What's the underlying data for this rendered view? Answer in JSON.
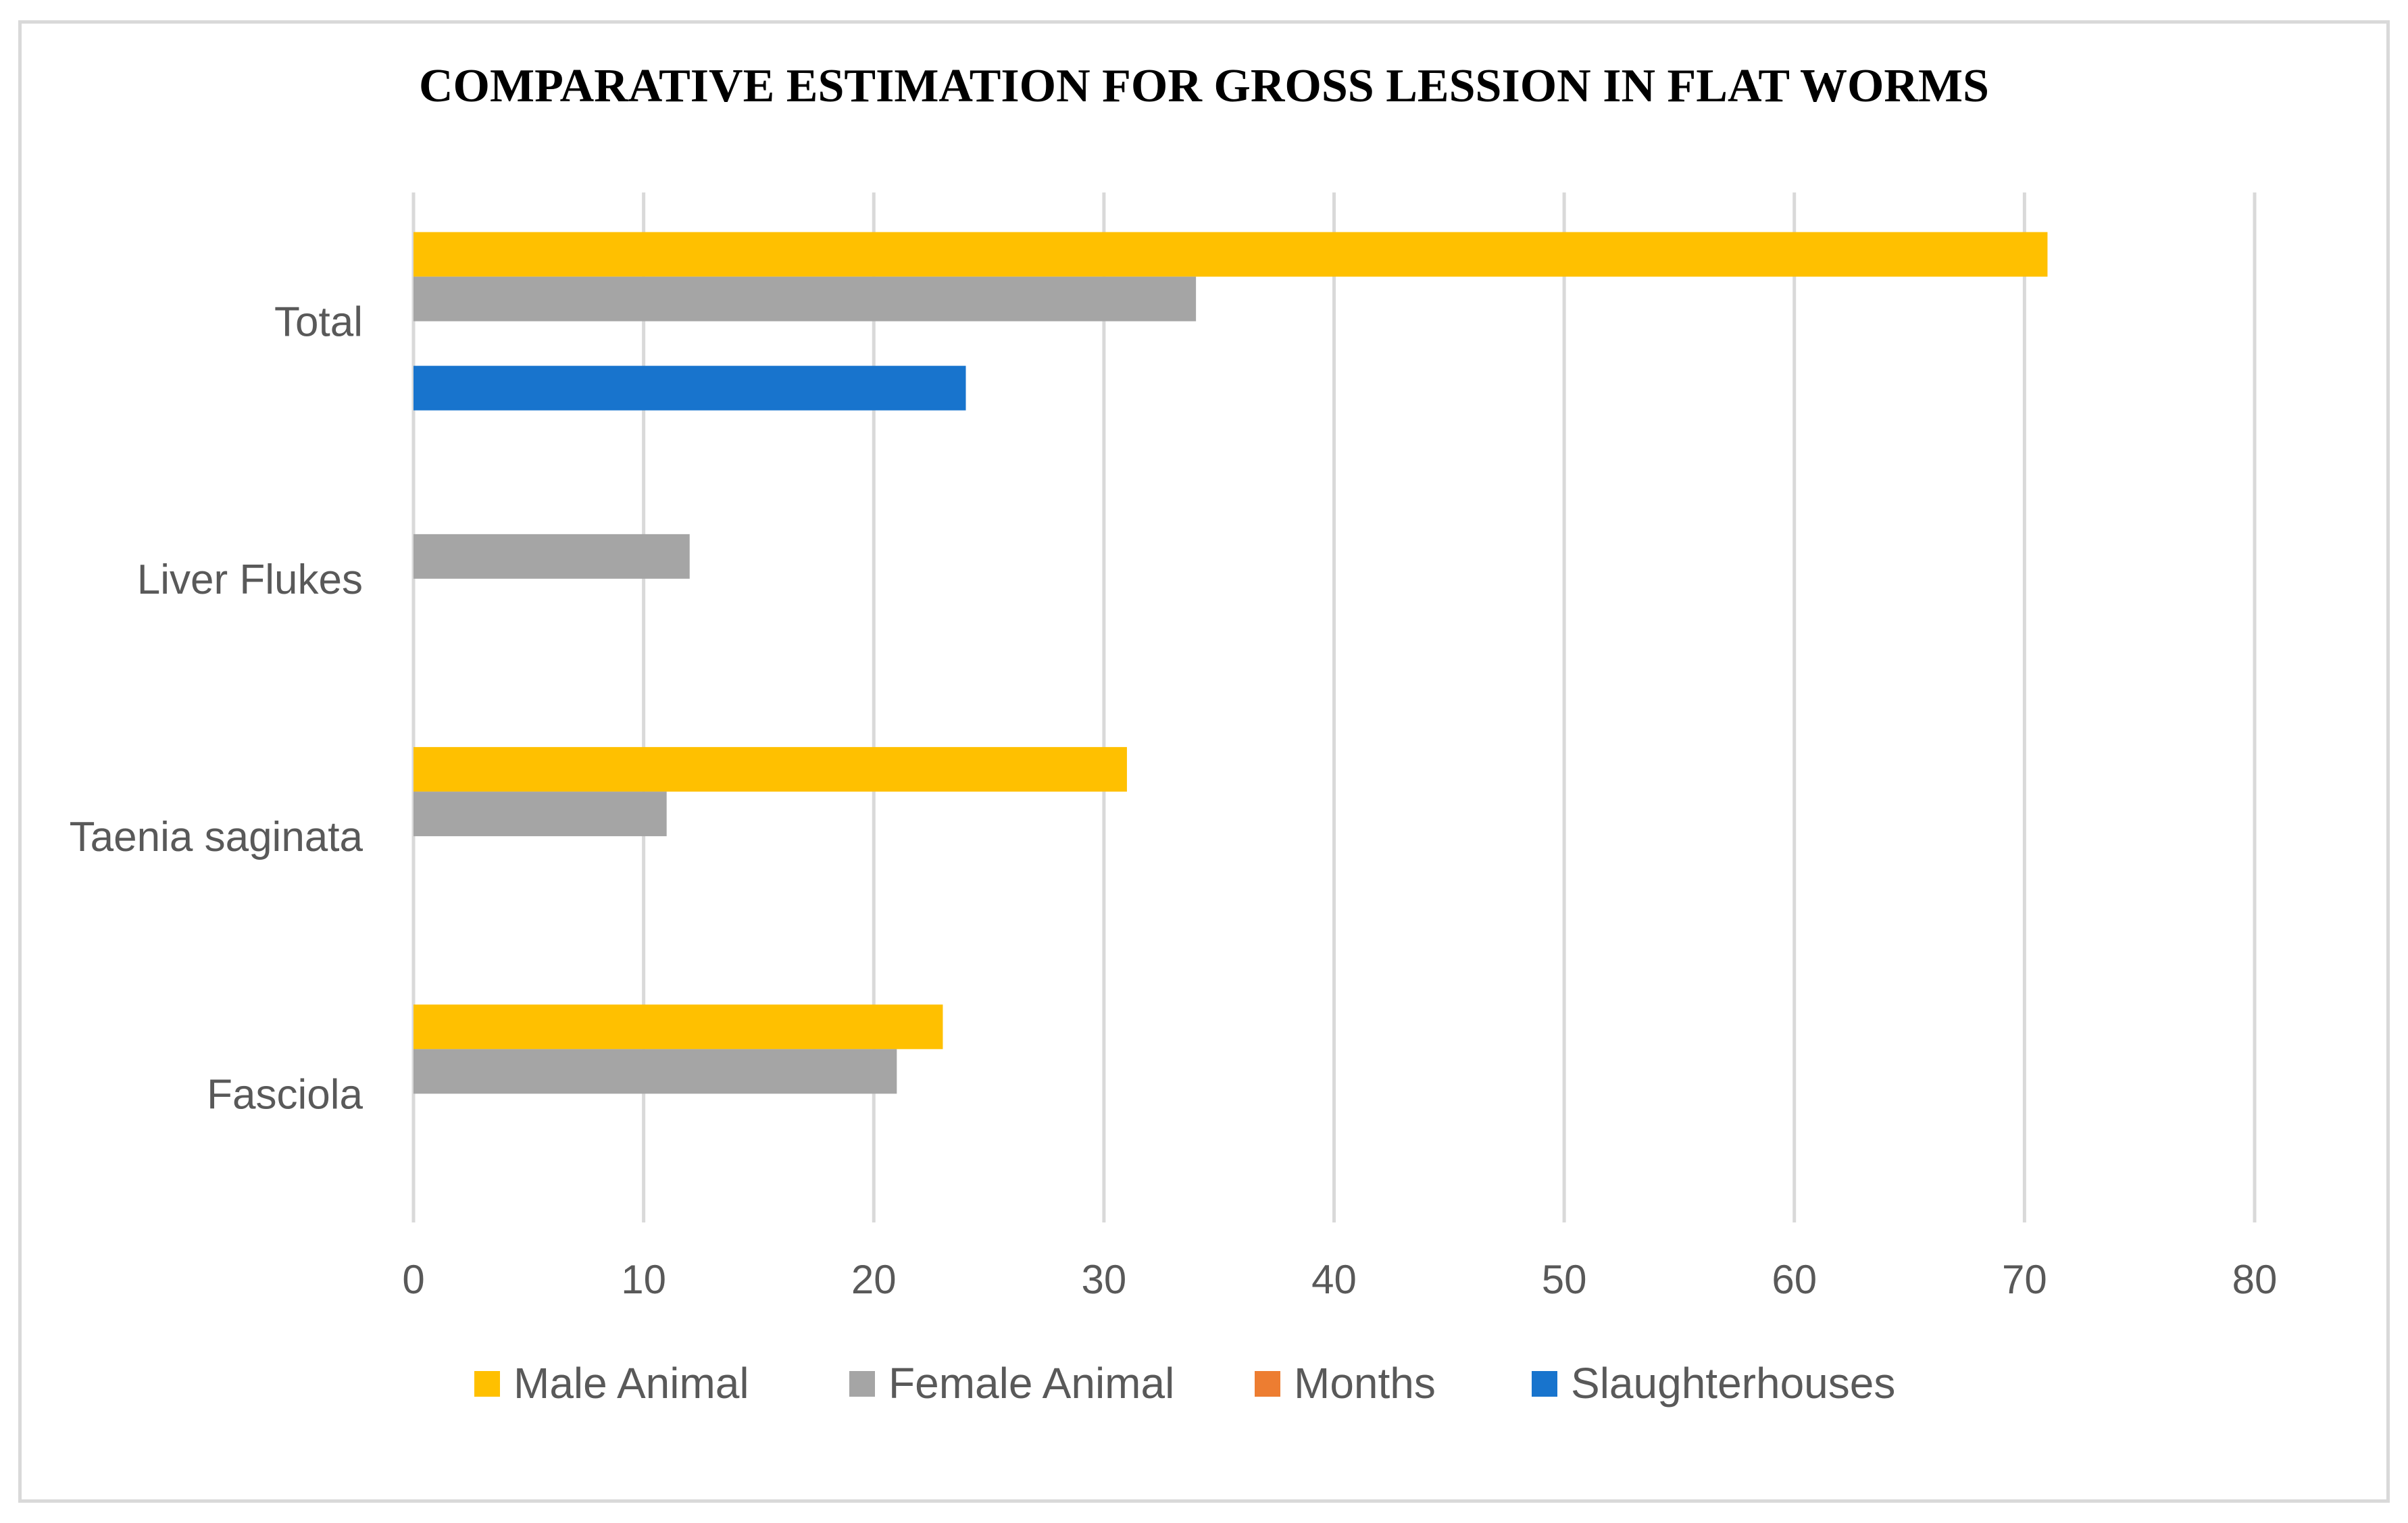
{
  "chart_data": {
    "type": "bar",
    "orientation": "horizontal",
    "title": "COMPARATIVE ESTIMATION FOR GROSS LESSION IN FLAT WORMS",
    "categories": [
      "Total",
      "Liver Flukes",
      "Taenia saginata",
      "Fasciola"
    ],
    "series": [
      {
        "name": "Male Animal",
        "color": "#ffc000",
        "values": [
          71,
          0,
          31,
          23
        ]
      },
      {
        "name": "Female Animal",
        "color": "#a5a5a5",
        "values": [
          34,
          12,
          11,
          21
        ]
      },
      {
        "name": "Months",
        "color": "#ed7d31",
        "values": [
          0,
          0,
          0,
          0
        ]
      },
      {
        "name": "Slaughterhouses",
        "color": "#1874cd",
        "values": [
          24,
          0,
          0,
          0
        ]
      }
    ],
    "xlim": [
      0,
      80
    ],
    "xticks": [
      "0",
      "10",
      "20",
      "30",
      "40",
      "50",
      "60",
      "70",
      "80"
    ],
    "xtick_values": [
      0,
      10,
      20,
      30,
      40,
      50,
      60,
      70,
      80
    ],
    "grid": "vertical",
    "gridline_color": "#d9d9d9",
    "legend_position": "bottom",
    "xlabel": "",
    "ylabel": ""
  }
}
